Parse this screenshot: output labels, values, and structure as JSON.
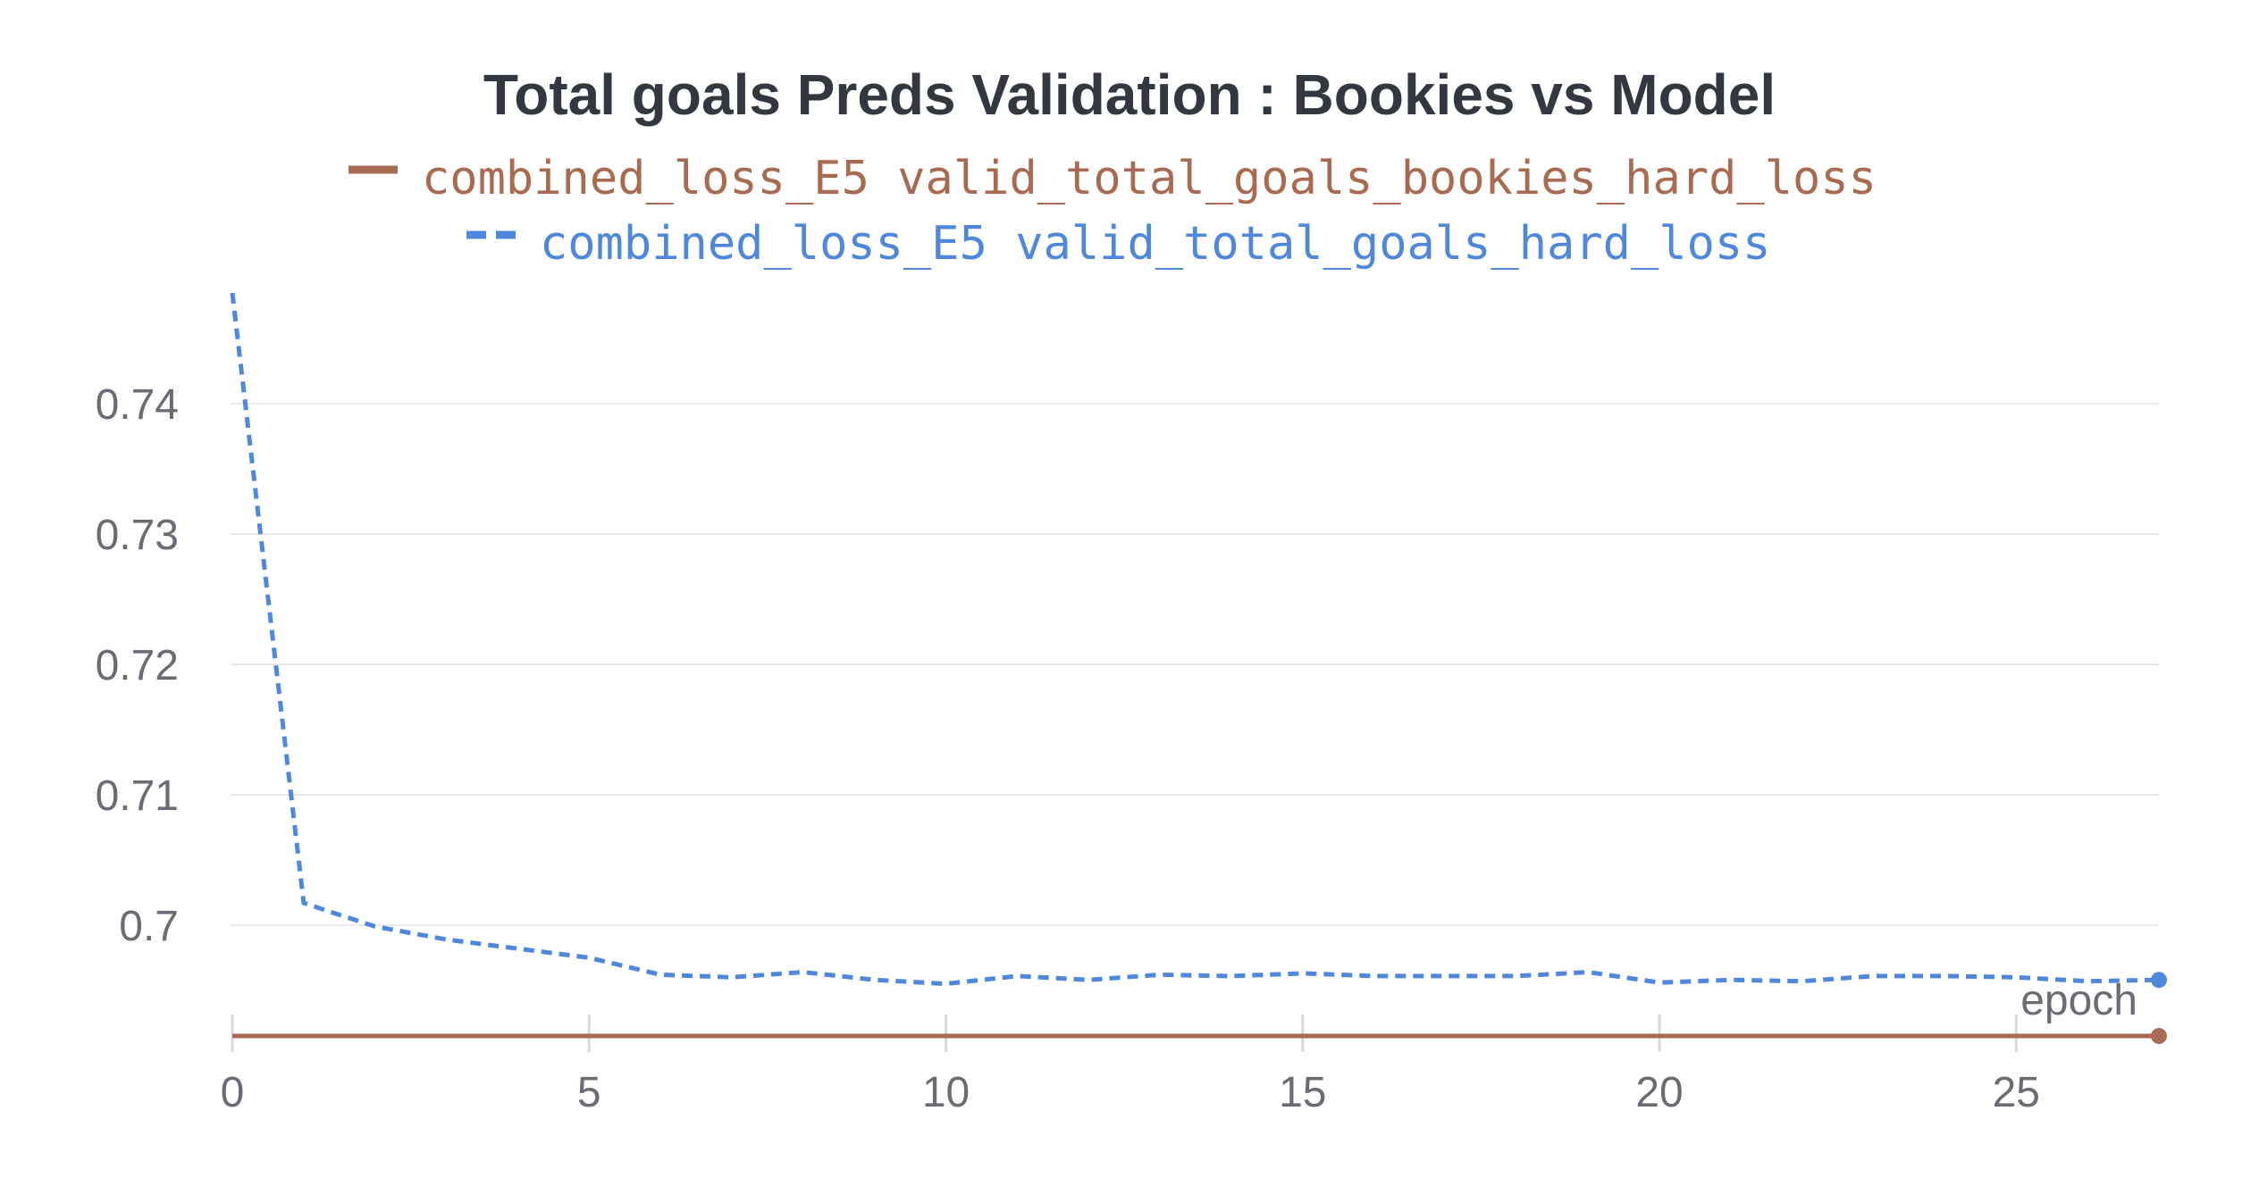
{
  "chart_data": {
    "type": "line",
    "title": "Total goals Preds Validation : Bookies vs Model",
    "xlabel": "epoch",
    "ylabel": "",
    "xlim": [
      0,
      27
    ],
    "ylim": [
      0.6915,
      0.7485
    ],
    "x_ticks": [
      0,
      5,
      10,
      15,
      20,
      25
    ],
    "y_ticks": [
      0.7,
      0.71,
      0.72,
      0.73,
      0.74
    ],
    "y_tick_labels": [
      "0.7",
      "0.71",
      "0.72",
      "0.73",
      "0.74"
    ],
    "x": [
      0,
      1,
      2,
      3,
      4,
      5,
      6,
      7,
      8,
      9,
      10,
      11,
      12,
      13,
      14,
      15,
      16,
      17,
      18,
      19,
      20,
      21,
      22,
      23,
      24,
      25,
      26,
      27
    ],
    "grid": "horizontal",
    "legend_position": "top",
    "series": [
      {
        "name": "combined_loss_E5 valid_total_goals_bookies_hard_loss",
        "color": "#a86b52",
        "style": "solid",
        "values": [
          0.6915,
          0.6915,
          0.6915,
          0.6915,
          0.6915,
          0.6915,
          0.6915,
          0.6915,
          0.6915,
          0.6915,
          0.6915,
          0.6915,
          0.6915,
          0.6915,
          0.6915,
          0.6915,
          0.6915,
          0.6915,
          0.6915,
          0.6915,
          0.6915,
          0.6915,
          0.6915,
          0.6915,
          0.6915,
          0.6915,
          0.6915,
          0.6915
        ]
      },
      {
        "name": "combined_loss_E5 valid_total_goals_hard_loss",
        "color": "#4f87dc",
        "style": "dashed",
        "values": [
          0.7485,
          0.7017,
          0.6999,
          0.6989,
          0.6982,
          0.6975,
          0.6962,
          0.696,
          0.6964,
          0.6958,
          0.6955,
          0.6961,
          0.6958,
          0.6962,
          0.6961,
          0.6963,
          0.6961,
          0.6961,
          0.6961,
          0.6964,
          0.6956,
          0.6958,
          0.6957,
          0.6961,
          0.6961,
          0.696,
          0.6957,
          0.6958
        ]
      }
    ]
  }
}
